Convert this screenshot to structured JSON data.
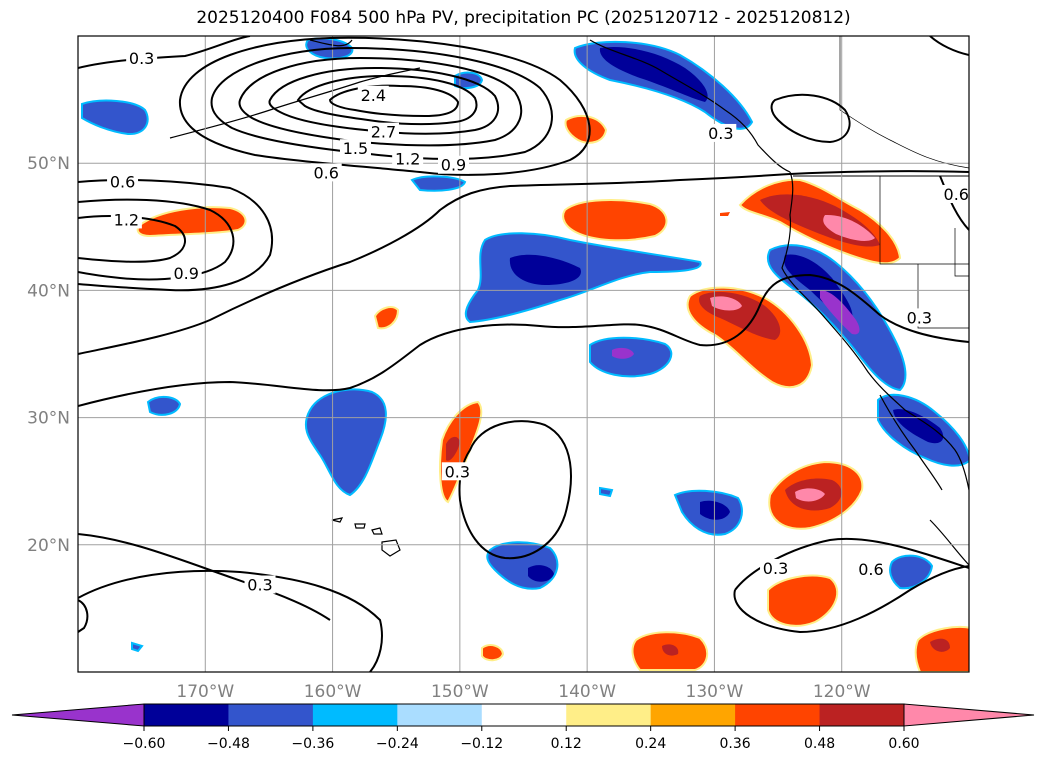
{
  "title": "2025120400 F084 500 hPa PV, precipitation PC (2025120712 - 2025120812)",
  "map": {
    "lon_range": [
      -180,
      -110
    ],
    "lat_range": [
      10,
      60
    ],
    "lon_ticks": [
      {
        "value": -170,
        "label": "170°W"
      },
      {
        "value": -160,
        "label": "160°W"
      },
      {
        "value": -150,
        "label": "150°W"
      },
      {
        "value": -140,
        "label": "140°W"
      },
      {
        "value": -130,
        "label": "130°W"
      },
      {
        "value": -120,
        "label": "120°W"
      }
    ],
    "lat_ticks": [
      {
        "value": 20,
        "label": "20°N"
      },
      {
        "value": 30,
        "label": "30°N"
      },
      {
        "value": 40,
        "label": "40°N"
      },
      {
        "value": 50,
        "label": "50°N"
      }
    ],
    "contour_labels": [
      {
        "text": "0.3",
        "lon": -175,
        "lat": 58.2
      },
      {
        "text": "2.4",
        "lon": -156.8,
        "lat": 55.3
      },
      {
        "text": "2.7",
        "lon": -156,
        "lat": 52.4
      },
      {
        "text": "1.5",
        "lon": -158.2,
        "lat": 51.1
      },
      {
        "text": "1.2",
        "lon": -154.1,
        "lat": 50.3
      },
      {
        "text": "0.9",
        "lon": -150.5,
        "lat": 49.8
      },
      {
        "text": "0.6",
        "lon": -176.5,
        "lat": 48.5
      },
      {
        "text": "0.6",
        "lon": -160.5,
        "lat": 49.2
      },
      {
        "text": "1.2",
        "lon": -176.2,
        "lat": 45.5
      },
      {
        "text": "0.9",
        "lon": -171.5,
        "lat": 41.3
      },
      {
        "text": "0.3",
        "lon": -129.5,
        "lat": 52.3
      },
      {
        "text": "0.6",
        "lon": -111,
        "lat": 47.5
      },
      {
        "text": "0.3",
        "lon": -113.9,
        "lat": 37.8
      },
      {
        "text": "0.3",
        "lon": -150.2,
        "lat": 25.7
      },
      {
        "text": "0.3",
        "lon": -125.2,
        "lat": 18.1
      },
      {
        "text": "0.6",
        "lon": -117.7,
        "lat": 18.0
      },
      {
        "text": "0.3",
        "lon": -165.7,
        "lat": 16.8
      }
    ]
  },
  "colorbar": {
    "colors": [
      "#9933cc",
      "#000099",
      "#3355cc",
      "#00bbff",
      "#aaddff",
      "#ffffff",
      "#ffee88",
      "#ffa500",
      "#ff4400",
      "#bb2222",
      "#ff88aa"
    ],
    "tick_labels": [
      "−0.60",
      "−0.48",
      "−0.36",
      "−0.24",
      "−0.12",
      "0.12",
      "0.24",
      "0.36",
      "0.48",
      "0.60"
    ]
  },
  "shading_colors": {
    "neg_light": "#aaddff",
    "neg_cyan": "#00bbff",
    "neg_mid": "#3355cc",
    "neg_dark": "#000099",
    "neg_purple": "#9933cc",
    "pos_yellow": "#ffee88",
    "pos_orange": "#ffa500",
    "pos_red": "#ff4400",
    "pos_dark": "#bb2222",
    "pos_pink": "#ff88aa"
  }
}
